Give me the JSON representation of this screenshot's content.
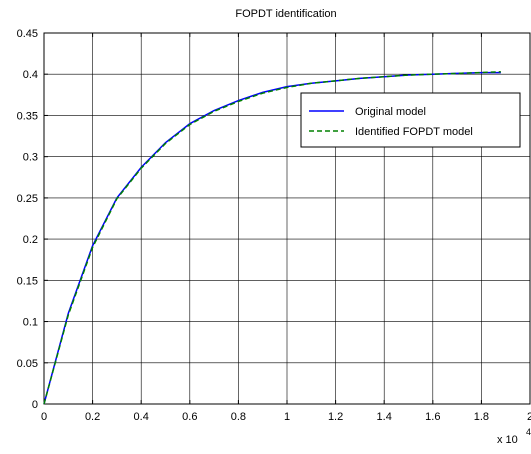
{
  "chart_data": {
    "type": "line",
    "title": "FOPDT identification",
    "xlabel": "",
    "ylabel": "",
    "x_multiplier_label": "x 10",
    "x_multiplier_exponent": "4",
    "xlim": [
      0,
      2
    ],
    "ylim": [
      0,
      0.45
    ],
    "xticks": [
      "0",
      "0.2",
      "0.4",
      "0.6",
      "0.8",
      "1",
      "1.2",
      "1.4",
      "1.6",
      "1.8",
      "2"
    ],
    "yticks": [
      "0",
      "0.05",
      "0.1",
      "0.15",
      "0.2",
      "0.25",
      "0.3",
      "0.35",
      "0.4",
      "0.45"
    ],
    "grid": true,
    "legend_position": "upper-right",
    "x": [
      0,
      0.1,
      0.2,
      0.3,
      0.4,
      0.5,
      0.6,
      0.7,
      0.8,
      0.9,
      1.0,
      1.1,
      1.2,
      1.3,
      1.4,
      1.5,
      1.6,
      1.7,
      1.8,
      1.88
    ],
    "series": [
      {
        "name": "Original model",
        "color": "#0000ff",
        "style": "solid",
        "values": [
          0,
          0.11,
          0.192,
          0.25,
          0.287,
          0.317,
          0.34,
          0.356,
          0.368,
          0.378,
          0.385,
          0.389,
          0.392,
          0.395,
          0.397,
          0.399,
          0.4,
          0.401,
          0.402,
          0.402
        ]
      },
      {
        "name": "Identified FOPDT model",
        "color": "#008000",
        "style": "dashed",
        "values": [
          0,
          0.108,
          0.19,
          0.249,
          0.286,
          0.316,
          0.339,
          0.355,
          0.367,
          0.377,
          0.384,
          0.389,
          0.392,
          0.395,
          0.397,
          0.399,
          0.4,
          0.401,
          0.402,
          0.403
        ]
      }
    ]
  }
}
